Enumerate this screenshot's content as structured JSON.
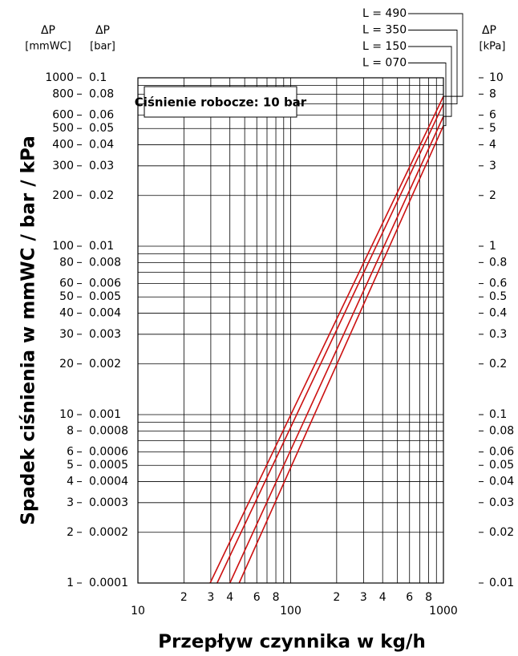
{
  "chart_data": {
    "type": "line",
    "annotation": "Ciśnienie robocze: 10 bar",
    "y_label": "Spadek ciśnienia w mmWC / bar / kPa",
    "x_label": "Przepływ czynnika w kg/h",
    "y_header": [
      "ΔP",
      "[mmWC]"
    ],
    "ybar_header": [
      "ΔP",
      "[bar]"
    ],
    "y2_header": [
      "ΔP",
      "[kPa]"
    ],
    "log_x": true,
    "log_y": true,
    "grid": true,
    "xlim": [
      10,
      1000
    ],
    "ylim": [
      1,
      1000
    ],
    "ybar_lim": [
      0.0001,
      0.1
    ],
    "y2lim": [
      0.01,
      10
    ],
    "xticks": [
      10,
      {
        "value": 20,
        "label": "2"
      },
      {
        "value": 30,
        "label": "3"
      },
      {
        "value": 40,
        "label": "4"
      },
      {
        "value": 60,
        "label": "6"
      },
      {
        "value": 80,
        "label": "8"
      },
      100,
      {
        "value": 200,
        "label": "2"
      },
      {
        "value": 300,
        "label": "3"
      },
      {
        "value": 400,
        "label": "4"
      },
      {
        "value": 600,
        "label": "6"
      },
      {
        "value": 800,
        "label": "8"
      },
      1000
    ],
    "xgrid": [
      10,
      20,
      30,
      40,
      50,
      60,
      70,
      80,
      90,
      100,
      200,
      300,
      400,
      500,
      600,
      700,
      800,
      900,
      1000
    ],
    "ygrid": [
      1,
      2,
      3,
      4,
      5,
      6,
      7,
      8,
      9,
      10,
      20,
      30,
      40,
      50,
      60,
      70,
      80,
      90,
      100,
      200,
      300,
      400,
      500,
      600,
      700,
      800,
      900,
      1000
    ],
    "yticks": [
      1,
      2,
      3,
      4,
      5,
      6,
      8,
      10,
      20,
      30,
      40,
      50,
      60,
      80,
      100,
      200,
      300,
      400,
      500,
      600,
      800,
      1000
    ],
    "ybar_ticks": [
      0.0001,
      0.0002,
      0.0003,
      0.0004,
      0.0005,
      0.0006,
      0.0008,
      0.001,
      0.002,
      0.003,
      0.004,
      0.005,
      0.006,
      0.008,
      0.01,
      0.02,
      0.03,
      0.04,
      0.05,
      0.06,
      0.08,
      0.1
    ],
    "y2ticks": [
      0.01,
      0.02,
      0.03,
      0.04,
      0.05,
      0.06,
      0.08,
      0.1,
      0.2,
      0.3,
      0.4,
      0.5,
      0.6,
      0.8,
      1,
      2,
      3,
      4,
      5,
      6,
      8,
      10
    ],
    "series": [
      {
        "name": "L = 070",
        "color": "#cc1111",
        "x": [
          46,
          1000
        ],
        "values": [
          1,
          520
        ]
      },
      {
        "name": "L = 150",
        "color": "#cc1111",
        "x": [
          40,
          1000
        ],
        "values": [
          1,
          590
        ]
      },
      {
        "name": "L = 350",
        "color": "#cc1111",
        "x": [
          33,
          1000
        ],
        "values": [
          1,
          700
        ]
      },
      {
        "name": "L = 490",
        "color": "#cc1111",
        "x": [
          29.7,
          1000
        ],
        "values": [
          1,
          776
        ]
      }
    ]
  }
}
